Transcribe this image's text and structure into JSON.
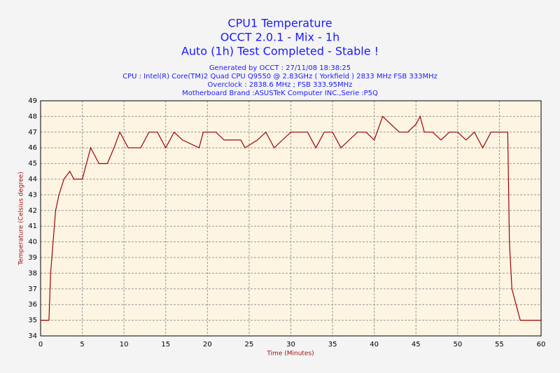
{
  "chart_data": {
    "type": "line",
    "title": [
      "CPU1 Temperature",
      "OCCT 2.0.1 - Mix - 1h",
      "Auto (1h) Test Completed - Stable !"
    ],
    "subtitle": [
      "Generated by OCCT : 27/11/08 18:38:25",
      "CPU : Intel(R) Core(TM)2 Quad CPU Q9550 @ 2.83GHz ( Yorkfield ) 2833 MHz FSB 333MHz",
      "Overclock : 2838.6 MHz ; FSB 333.95MHz",
      "Motherboard Brand :ASUSTeK Computer INC.,Serie :P5Q"
    ],
    "x_label": "Time (Minutes)",
    "y_label": "Temperature (Celsius degree)",
    "x": [
      0,
      1,
      1.2,
      1.5,
      1.8,
      2.2,
      2.5,
      2.8,
      3.5,
      4,
      5,
      6,
      7,
      8,
      8.8,
      9.5,
      10.5,
      12,
      13,
      14,
      15,
      16,
      17,
      19,
      19.5,
      21,
      22,
      24,
      24.5,
      26,
      27,
      28,
      29,
      30,
      32,
      33,
      34,
      35,
      36,
      37,
      38,
      39,
      40,
      41,
      42,
      43,
      44,
      45,
      45.5,
      46,
      47,
      48,
      49,
      50,
      51,
      52,
      53,
      54,
      55,
      56,
      56.2,
      56.5,
      57,
      57.5,
      60
    ],
    "series": [
      {
        "name": "CPU1",
        "color": "#a00000",
        "values": [
          35,
          35,
          38,
          40,
          42,
          43,
          43.5,
          44,
          44.5,
          44,
          44,
          46,
          45,
          45,
          46,
          47,
          46,
          46,
          47,
          47,
          46,
          47,
          46.5,
          46,
          47,
          47,
          46.5,
          46.5,
          46,
          46.5,
          47,
          46,
          46.5,
          47,
          47,
          46,
          47,
          47,
          46,
          46.5,
          47,
          47,
          46.5,
          48,
          47.5,
          47,
          47,
          47.5,
          48,
          47,
          47,
          46.5,
          47,
          47,
          46.5,
          47,
          46,
          47,
          47,
          47,
          40,
          37,
          36,
          35,
          35
        ]
      }
    ],
    "xlim": [
      0,
      60
    ],
    "xticks": [
      0,
      5,
      10,
      15,
      20,
      25,
      30,
      35,
      40,
      45,
      50,
      55,
      60
    ],
    "ylim": [
      34,
      49
    ],
    "yticks": [
      34,
      35,
      36,
      37,
      38,
      39,
      40,
      41,
      42,
      43,
      44,
      45,
      46,
      47,
      48,
      49
    ],
    "grid": true
  }
}
